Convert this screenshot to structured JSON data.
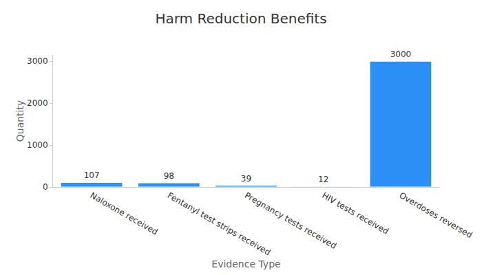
{
  "chart_data": {
    "type": "bar",
    "title": "Harm Reduction Benefits",
    "x_label": "Evidence Type",
    "y_label": "Quantity",
    "categories": [
      "Naloxone received",
      "Fentanyl test strips received",
      "Pregnancy tests received",
      "HIV tests received",
      "Overdoses reversed"
    ],
    "values": [
      107,
      98,
      39,
      12,
      3000
    ],
    "color": "#2b8ff5",
    "ylim": [
      0,
      3150
    ],
    "yticks": [
      0,
      1000,
      2000,
      3000
    ],
    "grid": false,
    "data_labels": true
  }
}
